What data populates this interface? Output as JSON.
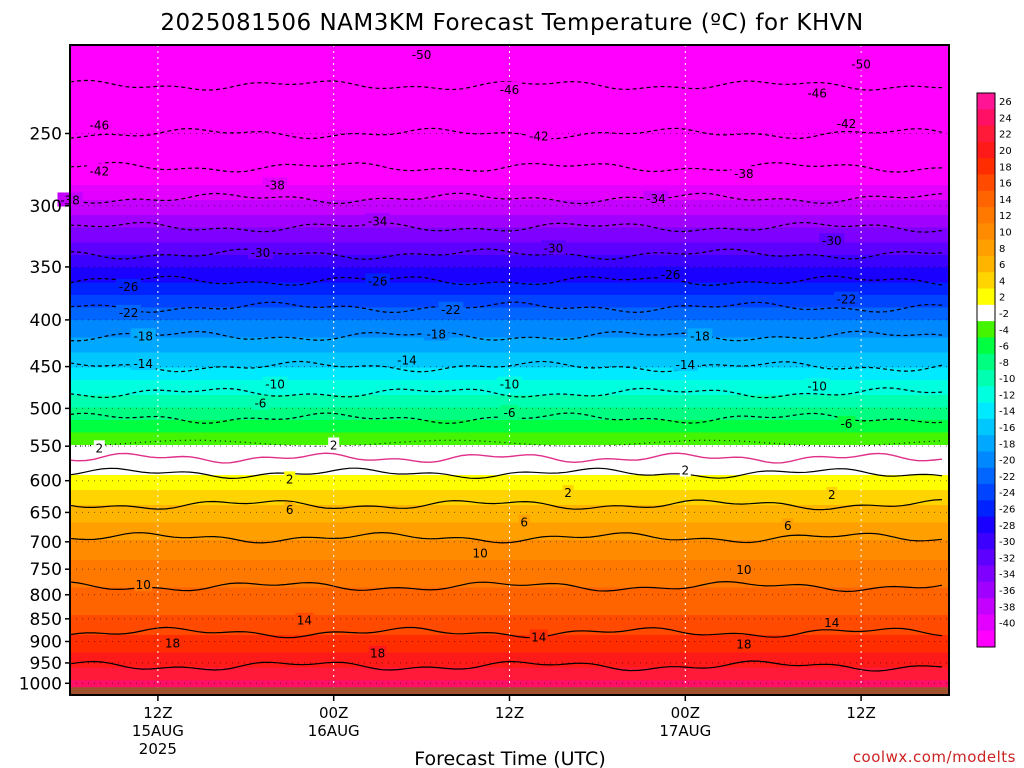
{
  "chart_data": {
    "type": "heatmap",
    "title": "2025081506 NAM3KM Forecast Temperature (ºC) for KHVN",
    "xlabel": "Forecast Time (UTC)",
    "ylabel": "",
    "credit": "coolwx.com/modelts",
    "y_scale": "log",
    "y_axis": {
      "ticks": [
        250,
        300,
        350,
        400,
        450,
        500,
        550,
        600,
        650,
        700,
        750,
        800,
        850,
        900,
        950,
        1000
      ],
      "range_hPa": [
        200,
        1030
      ]
    },
    "x_axis": {
      "range": [
        "2025-08-15 06Z",
        "2025-08-17 18Z"
      ],
      "ticks": [
        {
          "time": "2025-08-15 12Z",
          "line1": "12Z",
          "line2": "15AUG",
          "line3": "2025"
        },
        {
          "time": "2025-08-16 00Z",
          "line1": "00Z",
          "line2": "16AUG",
          "line3": ""
        },
        {
          "time": "2025-08-16 12Z",
          "line1": "12Z",
          "line2": "",
          "line3": ""
        },
        {
          "time": "2025-08-17 00Z",
          "line1": "00Z",
          "line2": "17AUG",
          "line3": ""
        },
        {
          "time": "2025-08-17 12Z",
          "line1": "12Z",
          "line2": "",
          "line3": ""
        }
      ],
      "grid": "dotted"
    },
    "grid": true,
    "contour_interval_C": 4,
    "freezing_line_color": "#e0308a",
    "ground_color": "#a0522d",
    "temperature_profile": {
      "pressure_hPa": [
        200,
        250,
        300,
        350,
        400,
        450,
        500,
        550,
        600,
        650,
        700,
        750,
        800,
        850,
        900,
        950,
        1000,
        1030
      ],
      "temp_C": [
        -53,
        -46,
        -37,
        -28,
        -20,
        -14,
        -7.5,
        -1.5,
        3,
        7,
        10.5,
        13,
        14.5,
        16.5,
        19,
        21.5,
        25,
        27
      ]
    },
    "contour_labels": [
      {
        "time": "2025-08-16 06Z",
        "p": 205,
        "text": "-50"
      },
      {
        "time": "2025-08-17 12Z",
        "p": 210,
        "text": "-50"
      },
      {
        "time": "2025-08-16 12Z",
        "p": 224,
        "text": "-46"
      },
      {
        "time": "2025-08-17 09Z",
        "p": 226,
        "text": "-46"
      },
      {
        "time": "2025-08-15 08Z",
        "p": 245,
        "text": "-46"
      },
      {
        "time": "2025-08-16 14Z",
        "p": 252,
        "text": "-42"
      },
      {
        "time": "2025-08-17 11Z",
        "p": 244,
        "text": "-42"
      },
      {
        "time": "2025-08-15 08Z",
        "p": 275,
        "text": "-42"
      },
      {
        "time": "2025-08-17 04Z",
        "p": 277,
        "text": "-38"
      },
      {
        "time": "2025-08-15 20Z",
        "p": 285,
        "text": "-38"
      },
      {
        "time": "2025-08-15 06Z",
        "p": 296,
        "text": "-38"
      },
      {
        "time": "2025-08-16 22Z",
        "p": 295,
        "text": "-34"
      },
      {
        "time": "2025-08-16 03Z",
        "p": 312,
        "text": "-34"
      },
      {
        "time": "2025-08-16 15Z",
        "p": 334,
        "text": "-30"
      },
      {
        "time": "2025-08-17 10Z",
        "p": 328,
        "text": "-30"
      },
      {
        "time": "2025-08-15 19Z",
        "p": 338,
        "text": "-30"
      },
      {
        "time": "2025-08-16 23Z",
        "p": 357,
        "text": "-26"
      },
      {
        "time": "2025-08-16 03Z",
        "p": 363,
        "text": "-26"
      },
      {
        "time": "2025-08-15 10Z",
        "p": 368,
        "text": "-26"
      },
      {
        "time": "2025-08-17 11Z",
        "p": 380,
        "text": "-22"
      },
      {
        "time": "2025-08-16 08Z",
        "p": 390,
        "text": "-22"
      },
      {
        "time": "2025-08-15 10Z",
        "p": 393,
        "text": "-22"
      },
      {
        "time": "2025-08-16 07Z",
        "p": 415,
        "text": "-18"
      },
      {
        "time": "2025-08-17 01Z",
        "p": 417,
        "text": "-18"
      },
      {
        "time": "2025-08-15 11Z",
        "p": 417,
        "text": "-18"
      },
      {
        "time": "2025-08-16 05Z",
        "p": 443,
        "text": "-14"
      },
      {
        "time": "2025-08-17 00Z",
        "p": 448,
        "text": "-14"
      },
      {
        "time": "2025-08-15 11Z",
        "p": 447,
        "text": "-14"
      },
      {
        "time": "2025-08-16 12Z",
        "p": 471,
        "text": "-10"
      },
      {
        "time": "2025-08-17 09Z",
        "p": 473,
        "text": "-10"
      },
      {
        "time": "2025-08-15 20Z",
        "p": 471,
        "text": "-10"
      },
      {
        "time": "2025-08-15 19Z",
        "p": 494,
        "text": "-6"
      },
      {
        "time": "2025-08-16 12Z",
        "p": 506,
        "text": "-6"
      },
      {
        "time": "2025-08-17 11Z",
        "p": 520,
        "text": "-6"
      },
      {
        "time": "2025-08-15 08Z",
        "p": 553,
        "text": "2"
      },
      {
        "time": "2025-08-16 00Z",
        "p": 549,
        "text": "2"
      },
      {
        "time": "2025-08-17 00Z",
        "p": 585,
        "text": "2"
      },
      {
        "time": "2025-08-15 21Z",
        "p": 598,
        "text": "2"
      },
      {
        "time": "2025-08-16 16Z",
        "p": 619,
        "text": "2"
      },
      {
        "time": "2025-08-17 10Z",
        "p": 622,
        "text": "2"
      },
      {
        "time": "2025-08-15 21Z",
        "p": 646,
        "text": "6"
      },
      {
        "time": "2025-08-16 13Z",
        "p": 667,
        "text": "6"
      },
      {
        "time": "2025-08-17 07Z",
        "p": 673,
        "text": "6"
      },
      {
        "time": "2025-08-16 10Z",
        "p": 721,
        "text": "10"
      },
      {
        "time": "2025-08-17 04Z",
        "p": 752,
        "text": "10"
      },
      {
        "time": "2025-08-15 11Z",
        "p": 781,
        "text": "10"
      },
      {
        "time": "2025-08-15 22Z",
        "p": 854,
        "text": "14"
      },
      {
        "time": "2025-08-16 14Z",
        "p": 891,
        "text": "14"
      },
      {
        "time": "2025-08-17 10Z",
        "p": 859,
        "text": "14"
      },
      {
        "time": "2025-08-15 13Z",
        "p": 905,
        "text": "18"
      },
      {
        "time": "2025-08-16 03Z",
        "p": 928,
        "text": "18"
      },
      {
        "time": "2025-08-17 04Z",
        "p": 907,
        "text": "18"
      }
    ],
    "colorbar": {
      "ticks": [
        "26",
        "24",
        "22",
        "20",
        "18",
        "16",
        "14",
        "12",
        "10",
        "8",
        "6",
        "4",
        "2",
        "-2",
        "-4",
        "-6",
        "-8",
        "-10",
        "-12",
        "-14",
        "-16",
        "-18",
        "-20",
        "-22",
        "-24",
        "-26",
        "-28",
        "-30",
        "-32",
        "-34",
        "-36",
        "-38",
        "-40"
      ],
      "colors": [
        "#ff1493",
        "#ff1064",
        "#ff1a3a",
        "#ff1a1a",
        "#ff2d00",
        "#ff4a00",
        "#ff6400",
        "#ff7800",
        "#ff8c00",
        "#ffa000",
        "#ffb400",
        "#ffd400",
        "#ffff00",
        "#ffffff",
        "#44f400",
        "#00ff40",
        "#00ff80",
        "#00ffb0",
        "#00ffdf",
        "#00eaff",
        "#00c8ff",
        "#00a8ff",
        "#0088ff",
        "#0066ff",
        "#0044ff",
        "#0022ff",
        "#1a00ff",
        "#3c00ff",
        "#5e00ff",
        "#8000ff",
        "#a000ff",
        "#c400ff",
        "#e400ff",
        "#ff00ff"
      ]
    }
  }
}
